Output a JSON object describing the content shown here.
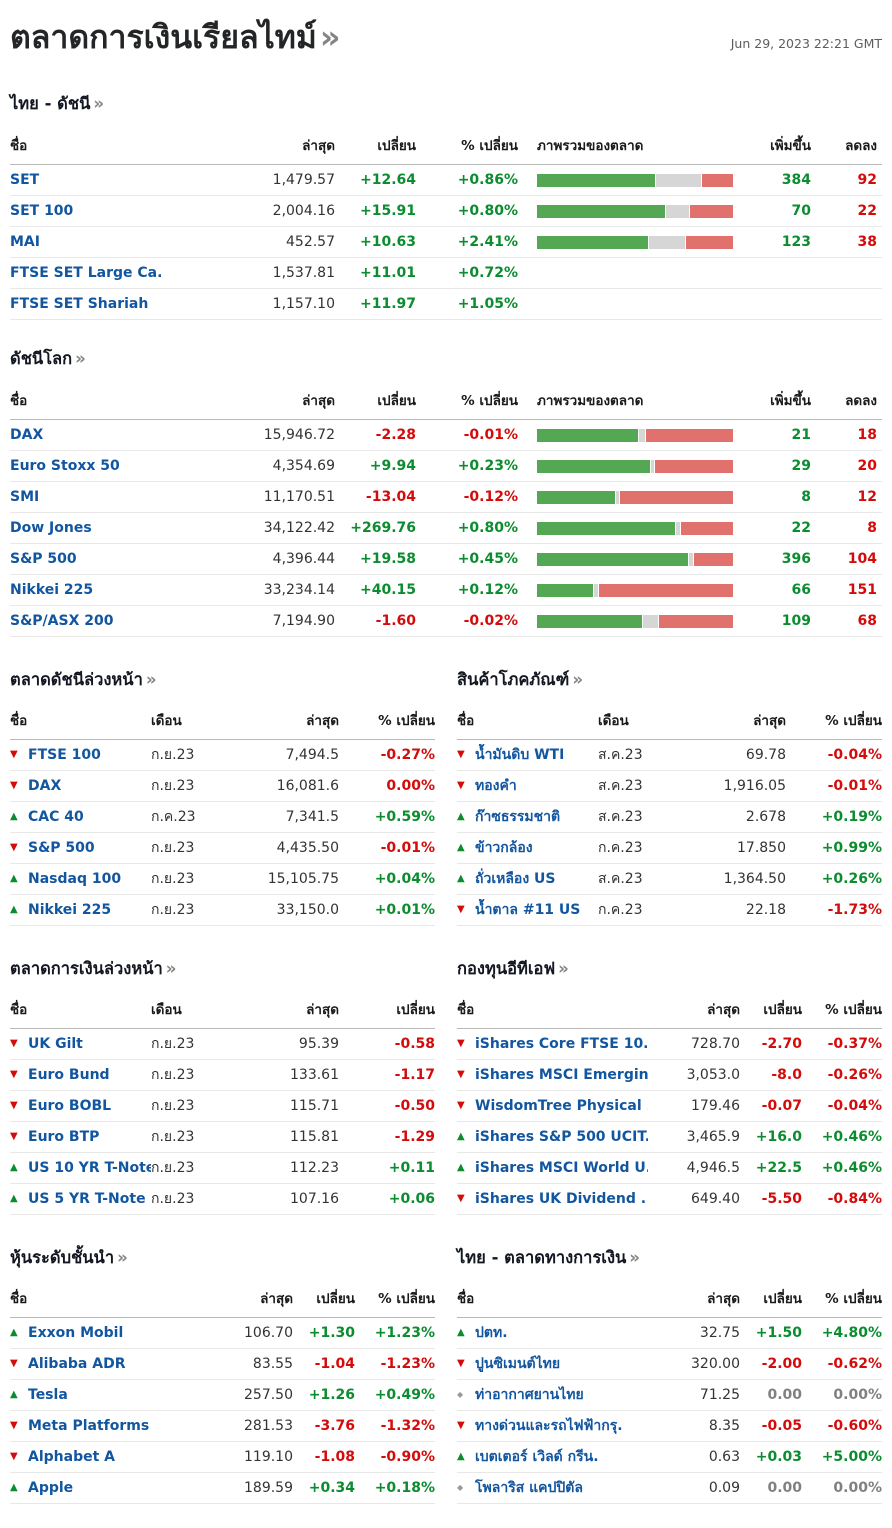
{
  "ui": {
    "page_title": "ตลาดการเงินเรียลไทม์",
    "more": "»",
    "timestamp": "Jun 29, 2023 22:21 GMT"
  },
  "colors": {
    "up": "#0b8c2f",
    "down": "#d40b0b",
    "flat": "#808080",
    "link": "#1256a0",
    "bar_up": "#54a854",
    "bar_flat": "#d6d6d6",
    "bar_down": "#e0716c"
  },
  "thai_indices": {
    "title": "ไทย - ดัชนี",
    "headers": [
      "ชื่อ",
      "ล่าสุด",
      "เปลี่ยน",
      "% เปลี่ยน",
      "ภาพรวมของตลาด",
      "เพิ่มขึ้น",
      "ลดลง"
    ],
    "rows": [
      {
        "name": "SET",
        "last": "1,479.57",
        "change": "+12.64",
        "pct": "+0.86%",
        "cls": "up",
        "bar": [
          61,
          23,
          16
        ],
        "adv": "384",
        "dec": "92"
      },
      {
        "name": "SET 100",
        "last": "2,004.16",
        "change": "+15.91",
        "pct": "+0.80%",
        "cls": "up",
        "bar": [
          66,
          12,
          22
        ],
        "adv": "70",
        "dec": "22"
      },
      {
        "name": "MAI",
        "last": "452.57",
        "change": "+10.63",
        "pct": "+2.41%",
        "cls": "up",
        "bar": [
          57,
          19,
          24
        ],
        "adv": "123",
        "dec": "38"
      },
      {
        "name": "FTSE SET Large Ca.",
        "last": "1,537.81",
        "change": "+11.01",
        "pct": "+0.72%",
        "cls": "up"
      },
      {
        "name": "FTSE SET Shariah",
        "last": "1,157.10",
        "change": "+11.97",
        "pct": "+1.05%",
        "cls": "up"
      }
    ]
  },
  "world_indices": {
    "title": "ดัชนีโลก",
    "headers": [
      "ชื่อ",
      "ล่าสุด",
      "เปลี่ยน",
      "% เปลี่ยน",
      "ภาพรวมของตลาด",
      "เพิ่มขึ้น",
      "ลดลง"
    ],
    "rows": [
      {
        "name": "DAX",
        "last": "15,946.72",
        "change": "-2.28",
        "pct": "-0.01%",
        "cls": "down",
        "bar": [
          52,
          3,
          45
        ],
        "adv": "21",
        "dec": "18"
      },
      {
        "name": "Euro Stoxx 50",
        "last": "4,354.69",
        "change": "+9.94",
        "pct": "+0.23%",
        "cls": "up",
        "bar": [
          58,
          2,
          40
        ],
        "adv": "29",
        "dec": "20"
      },
      {
        "name": "SMI",
        "last": "11,170.51",
        "change": "-13.04",
        "pct": "-0.12%",
        "cls": "down",
        "bar": [
          40,
          2,
          58
        ],
        "adv": "8",
        "dec": "12"
      },
      {
        "name": "Dow Jones",
        "last": "34,122.42",
        "change": "+269.76",
        "pct": "+0.80%",
        "cls": "up",
        "bar": [
          71,
          2,
          27
        ],
        "adv": "22",
        "dec": "8"
      },
      {
        "name": "S&P 500",
        "last": "4,396.44",
        "change": "+19.58",
        "pct": "+0.45%",
        "cls": "up",
        "bar": [
          78,
          2,
          20
        ],
        "adv": "396",
        "dec": "104"
      },
      {
        "name": "Nikkei 225",
        "last": "33,234.14",
        "change": "+40.15",
        "pct": "+0.12%",
        "cls": "up",
        "bar": [
          29,
          2,
          69
        ],
        "adv": "66",
        "dec": "151"
      },
      {
        "name": "S&P/ASX 200",
        "last": "7,194.90",
        "change": "-1.60",
        "pct": "-0.02%",
        "cls": "down",
        "bar": [
          54,
          8,
          38
        ],
        "adv": "109",
        "dec": "68"
      }
    ]
  },
  "mini_tables": [
    {
      "title": "ตลาดดัชนีล่วงหน้า",
      "type": "month",
      "headers": [
        "ชื่อ",
        "เดือน",
        "ล่าสุด",
        "% เปลี่ยน"
      ],
      "rows": [
        {
          "dir": "down",
          "name": "FTSE 100",
          "month": "ก.ย.23",
          "last": "7,494.5",
          "chg": "-0.27%"
        },
        {
          "dir": "down",
          "name": "DAX",
          "month": "ก.ย.23",
          "last": "16,081.6",
          "chg": "0.00%"
        },
        {
          "dir": "up",
          "name": "CAC 40",
          "month": "ก.ค.23",
          "last": "7,341.5",
          "chg": "+0.59%"
        },
        {
          "dir": "down",
          "name": "S&P 500",
          "month": "ก.ย.23",
          "last": "4,435.50",
          "chg": "-0.01%"
        },
        {
          "dir": "up",
          "name": "Nasdaq 100",
          "month": "ก.ย.23",
          "last": "15,105.75",
          "chg": "+0.04%"
        },
        {
          "dir": "up",
          "name": "Nikkei 225",
          "month": "ก.ย.23",
          "last": "33,150.0",
          "chg": "+0.01%"
        }
      ]
    },
    {
      "title": "สินค้าโภคภัณฑ์",
      "type": "month",
      "headers": [
        "ชื่อ",
        "เดือน",
        "ล่าสุด",
        "% เปลี่ยน"
      ],
      "rows": [
        {
          "dir": "down",
          "name": "น้ำมันดิบ WTI",
          "month": "ส.ค.23",
          "last": "69.78",
          "chg": "-0.04%"
        },
        {
          "dir": "down",
          "name": "ทองคำ",
          "month": "ส.ค.23",
          "last": "1,916.05",
          "chg": "-0.01%"
        },
        {
          "dir": "up",
          "name": "ก๊าซธรรมชาติ",
          "month": "ส.ค.23",
          "last": "2.678",
          "chg": "+0.19%"
        },
        {
          "dir": "up",
          "name": "ข้าวกล้อง",
          "month": "ก.ค.23",
          "last": "17.850",
          "chg": "+0.99%"
        },
        {
          "dir": "up",
          "name": "ถั่วเหลือง US",
          "month": "ส.ค.23",
          "last": "1,364.50",
          "chg": "+0.26%"
        },
        {
          "dir": "down",
          "name": "น้ำตาล #11 US",
          "month": "ก.ค.23",
          "last": "22.18",
          "chg": "-1.73%"
        }
      ]
    },
    {
      "title": "ตลาดการเงินล่วงหน้า",
      "type": "month",
      "headers": [
        "ชื่อ",
        "เดือน",
        "ล่าสุด",
        "เปลี่ยน"
      ],
      "rows": [
        {
          "dir": "down",
          "name": "UK Gilt",
          "month": "ก.ย.23",
          "last": "95.39",
          "chg": "-0.58"
        },
        {
          "dir": "down",
          "name": "Euro Bund",
          "month": "ก.ย.23",
          "last": "133.61",
          "chg": "-1.17"
        },
        {
          "dir": "down",
          "name": "Euro BOBL",
          "month": "ก.ย.23",
          "last": "115.71",
          "chg": "-0.50"
        },
        {
          "dir": "down",
          "name": "Euro BTP",
          "month": "ก.ย.23",
          "last": "115.81",
          "chg": "-1.29"
        },
        {
          "dir": "up",
          "name": "US 10 YR T-Note",
          "month": "ก.ย.23",
          "last": "112.23",
          "chg": "+0.11"
        },
        {
          "dir": "up",
          "name": "US 5 YR T-Note",
          "month": "ก.ย.23",
          "last": "107.16",
          "chg": "+0.06"
        }
      ]
    },
    {
      "title": "กองทุนอีทีเอฟ",
      "type": "plain",
      "headers": [
        "ชื่อ",
        "ล่าสุด",
        "เปลี่ยน",
        "% เปลี่ยน"
      ],
      "rows": [
        {
          "dir": "down",
          "name": "iShares Core FTSE 10.",
          "last": "728.70",
          "chg": "-2.70",
          "pct": "-0.37%"
        },
        {
          "dir": "down",
          "name": "iShares MSCI Emergin.",
          "last": "3,053.0",
          "chg": "-8.0",
          "pct": "-0.26%"
        },
        {
          "dir": "down",
          "name": "WisdomTree Physical .",
          "last": "179.46",
          "chg": "-0.07",
          "pct": "-0.04%"
        },
        {
          "dir": "up",
          "name": "iShares S&P 500 UCIT.",
          "last": "3,465.9",
          "chg": "+16.0",
          "pct": "+0.46%"
        },
        {
          "dir": "up",
          "name": "iShares MSCI World U.",
          "last": "4,946.5",
          "chg": "+22.5",
          "pct": "+0.46%"
        },
        {
          "dir": "down",
          "name": "iShares UK Dividend .",
          "last": "649.40",
          "chg": "-5.50",
          "pct": "-0.84%"
        }
      ]
    },
    {
      "title": "หุ้นระดับชั้นนำ",
      "type": "plain",
      "headers": [
        "ชื่อ",
        "ล่าสุด",
        "เปลี่ยน",
        "% เปลี่ยน"
      ],
      "rows": [
        {
          "dir": "up",
          "name": "Exxon Mobil",
          "last": "106.70",
          "chg": "+1.30",
          "pct": "+1.23%"
        },
        {
          "dir": "down",
          "name": "Alibaba ADR",
          "last": "83.55",
          "chg": "-1.04",
          "pct": "-1.23%"
        },
        {
          "dir": "up",
          "name": "Tesla",
          "last": "257.50",
          "chg": "+1.26",
          "pct": "+0.49%"
        },
        {
          "dir": "down",
          "name": "Meta Platforms",
          "last": "281.53",
          "chg": "-3.76",
          "pct": "-1.32%"
        },
        {
          "dir": "down",
          "name": "Alphabet A",
          "last": "119.10",
          "chg": "-1.08",
          "pct": "-0.90%"
        },
        {
          "dir": "up",
          "name": "Apple",
          "last": "189.59",
          "chg": "+0.34",
          "pct": "+0.18%"
        }
      ]
    },
    {
      "title": "ไทย - ตลาดทางการเงิน",
      "type": "plain",
      "headers": [
        "ชื่อ",
        "ล่าสุด",
        "เปลี่ยน",
        "% เปลี่ยน"
      ],
      "rows": [
        {
          "dir": "up",
          "name": "ปตท.",
          "last": "32.75",
          "chg": "+1.50",
          "pct": "+4.80%"
        },
        {
          "dir": "down",
          "name": "ปูนซิเมนต์ไทย",
          "last": "320.00",
          "chg": "-2.00",
          "pct": "-0.62%"
        },
        {
          "dir": "flat",
          "name": "ท่าอากาศยานไทย",
          "last": "71.25",
          "chg": "0.00",
          "pct": "0.00%"
        },
        {
          "dir": "down",
          "name": "ทางด่วนและรถไฟฟ้ากรุ.",
          "last": "8.35",
          "chg": "-0.05",
          "pct": "-0.60%"
        },
        {
          "dir": "up",
          "name": "เบตเตอร์ เวิลด์ กรีน.",
          "last": "0.63",
          "chg": "+0.03",
          "pct": "+5.00%"
        },
        {
          "dir": "flat",
          "name": "โพลาริส แคปปิตัล",
          "last": "0.09",
          "chg": "0.00",
          "pct": "0.00%"
        }
      ]
    }
  ]
}
